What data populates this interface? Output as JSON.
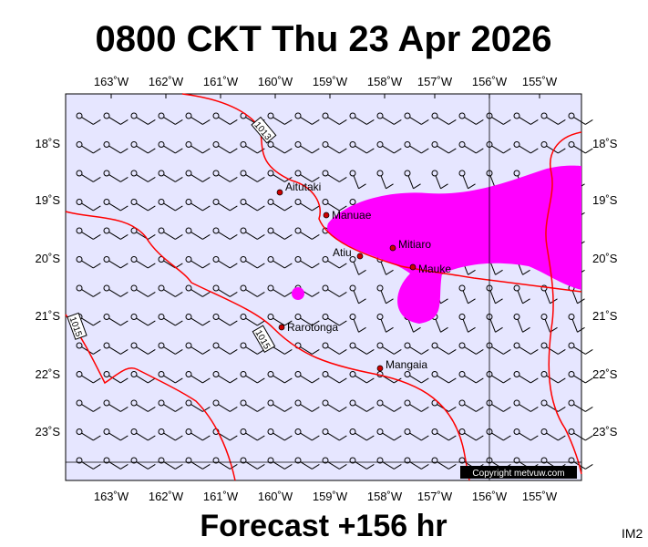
{
  "header": {
    "title": "0800 CKT Thu 23 Apr 2026"
  },
  "footer": {
    "forecast": "Forecast +156 hr",
    "code": "IM2",
    "copyright": "Copyright metvuw.com"
  },
  "lon_labels": [
    "163˚W",
    "162˚W",
    "161˚W",
    "160˚W",
    "159˚W",
    "158˚W",
    "157˚W",
    "156˚W",
    "155˚W"
  ],
  "lat_labels": [
    "18˚S",
    "19˚S",
    "20˚S",
    "21˚S",
    "22˚S",
    "23˚S"
  ],
  "places": [
    {
      "name": "Aitutaki"
    },
    {
      "name": "Manuae"
    },
    {
      "name": "Mitiaro"
    },
    {
      "name": "Atiu"
    },
    {
      "name": "Mauke"
    },
    {
      "name": "Rarotonga"
    },
    {
      "name": "Mangaia"
    }
  ],
  "isobar_labels": [
    "1013",
    "1015",
    "1015"
  ]
}
